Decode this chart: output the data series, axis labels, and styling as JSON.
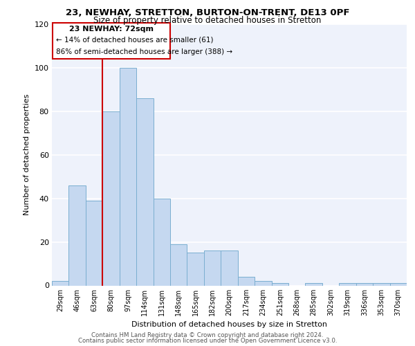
{
  "title1": "23, NEWHAY, STRETTON, BURTON-ON-TRENT, DE13 0PF",
  "title2": "Size of property relative to detached houses in Stretton",
  "xlabel": "Distribution of detached houses by size in Stretton",
  "ylabel": "Number of detached properties",
  "categories": [
    "29sqm",
    "46sqm",
    "63sqm",
    "80sqm",
    "97sqm",
    "114sqm",
    "131sqm",
    "148sqm",
    "165sqm",
    "182sqm",
    "200sqm",
    "217sqm",
    "234sqm",
    "251sqm",
    "268sqm",
    "285sqm",
    "302sqm",
    "319sqm",
    "336sqm",
    "353sqm",
    "370sqm"
  ],
  "values": [
    2,
    46,
    39,
    80,
    100,
    86,
    40,
    19,
    15,
    16,
    16,
    4,
    2,
    1,
    0,
    1,
    0,
    1,
    1,
    1,
    1
  ],
  "bar_color": "#c5d8f0",
  "bar_edge_color": "#7aaed0",
  "vline_x_index": 2.5,
  "annotation_line1": "23 NEWHAY: 72sqm",
  "annotation_line2": "← 14% of detached houses are smaller (61)",
  "annotation_line3": "86% of semi-detached houses are larger (388) →",
  "annotation_box_color": "#cc0000",
  "vline_color": "#cc0000",
  "footer1": "Contains HM Land Registry data © Crown copyright and database right 2024.",
  "footer2": "Contains public sector information licensed under the Open Government Licence v3.0.",
  "ylim": [
    0,
    120
  ],
  "background_color": "#eef2fb"
}
